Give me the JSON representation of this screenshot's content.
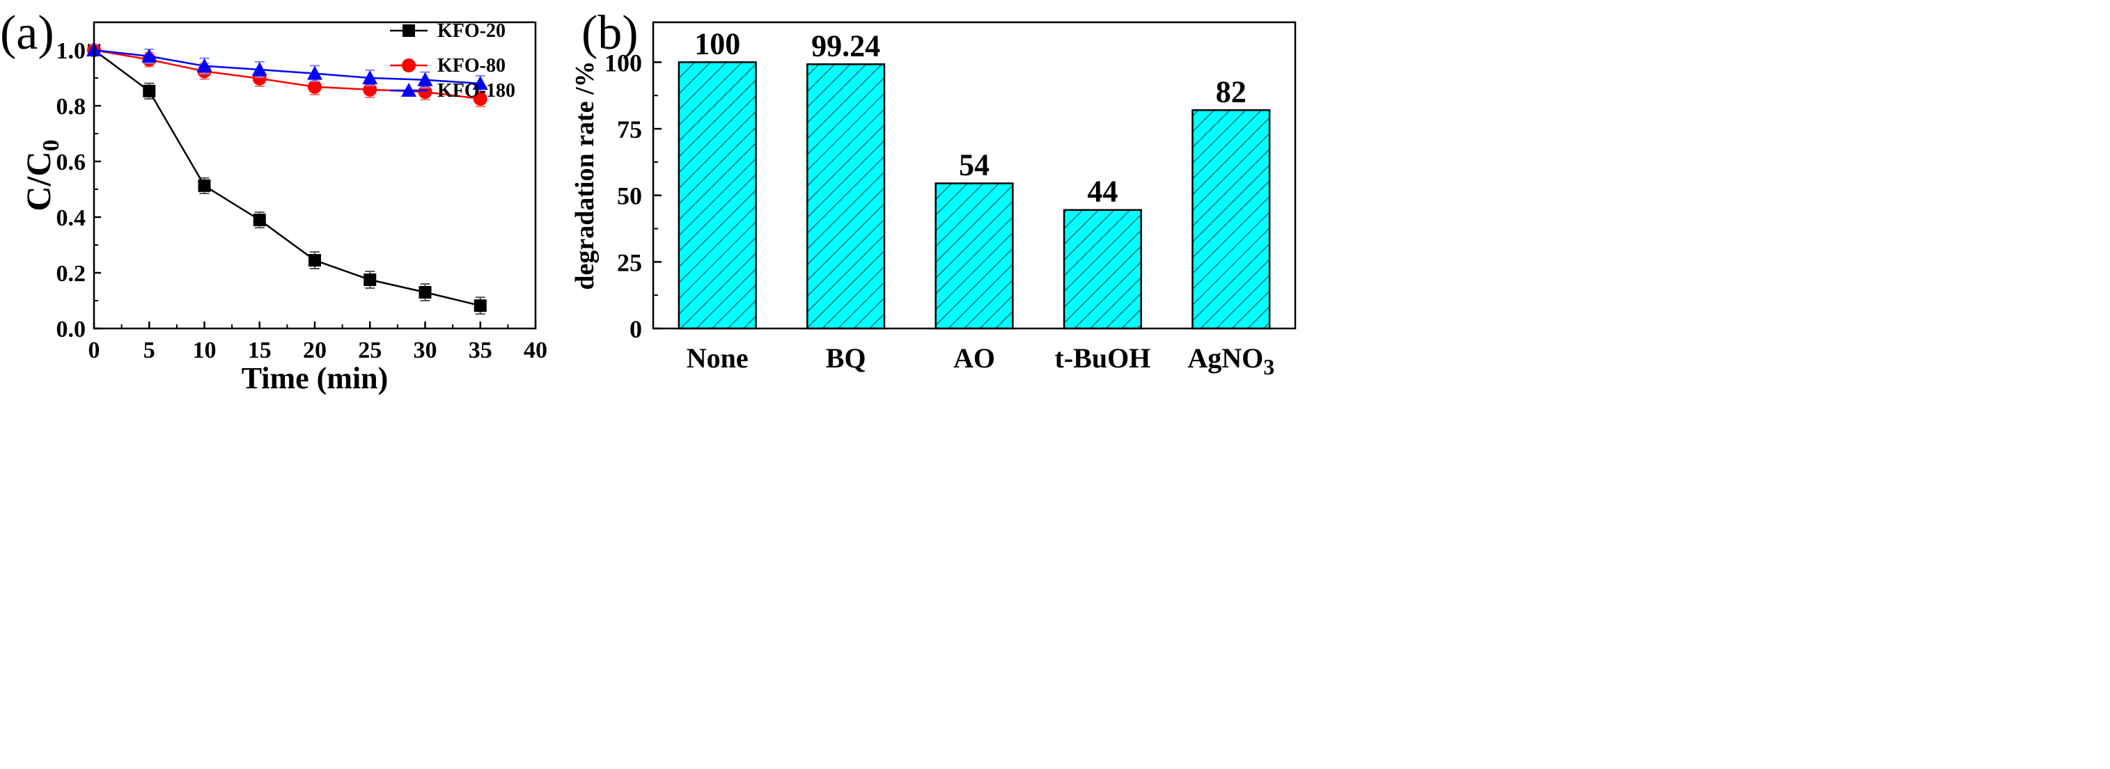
{
  "chart_data": [
    {
      "panel_label": "(a)",
      "type": "line",
      "xlabel": "Time (min)",
      "ylabel_main": "C/C",
      "ylabel_sub": "0",
      "xlim": [
        0,
        40
      ],
      "ylim": [
        0,
        1.1
      ],
      "xticks": [
        0,
        5,
        10,
        15,
        20,
        25,
        30,
        35,
        40
      ],
      "xtick_labels": [
        "0",
        "5",
        "10",
        "15",
        "20",
        "25",
        "30",
        "35",
        "40"
      ],
      "yticks": [
        0,
        0.2,
        0.4,
        0.6,
        0.8,
        1.0
      ],
      "ytick_labels": [
        "0.0",
        "0.2",
        "0.4",
        "0.6",
        "0.8",
        "1.0"
      ],
      "legend_position": "top-right",
      "series": [
        {
          "name": "KFO-20",
          "color": "#000000",
          "marker": "square",
          "x": [
            0,
            5,
            10,
            15,
            20,
            25,
            30,
            35
          ],
          "values": [
            1.0,
            0.853,
            0.513,
            0.39,
            0.245,
            0.175,
            0.13,
            0.082
          ],
          "errors": [
            0.02,
            0.028,
            0.028,
            0.028,
            0.03,
            0.03,
            0.03,
            0.03
          ]
        },
        {
          "name": "KFO-80",
          "color": "#ff0000",
          "marker": "circle",
          "x": [
            0,
            5,
            10,
            15,
            20,
            25,
            30,
            35
          ],
          "values": [
            1.0,
            0.966,
            0.924,
            0.898,
            0.868,
            0.858,
            0.85,
            0.825
          ],
          "errors": [
            0.02,
            0.025,
            0.028,
            0.028,
            0.028,
            0.028,
            0.028,
            0.028
          ]
        },
        {
          "name": "KFO-180",
          "color": "#0000ff",
          "marker": "triangle",
          "x": [
            0,
            5,
            10,
            15,
            20,
            25,
            30,
            35
          ],
          "values": [
            1.0,
            0.978,
            0.943,
            0.93,
            0.916,
            0.9,
            0.893,
            0.88
          ],
          "errors": [
            0.02,
            0.025,
            0.028,
            0.028,
            0.028,
            0.028,
            0.028,
            0.028
          ]
        }
      ]
    },
    {
      "panel_label": "(b)",
      "type": "bar",
      "ylabel": "degradation rate /%",
      "ylim": [
        0,
        115
      ],
      "yticks": [
        0,
        25,
        50,
        75,
        100
      ],
      "ytick_labels": [
        "0",
        "25",
        "50",
        "75",
        "100"
      ],
      "bar_color": "#00ffff",
      "hatch_color": "#1a6e78",
      "categories": [
        "None",
        "BQ",
        "AO",
        "t-BuOH",
        "AgNO"
      ],
      "category_subscripts": [
        "",
        "",
        "",
        "",
        "3"
      ],
      "values": [
        100,
        99.24,
        54.5,
        44.5,
        82
      ],
      "data_labels": [
        "100",
        "99.24",
        "54",
        "44",
        "82"
      ]
    }
  ]
}
